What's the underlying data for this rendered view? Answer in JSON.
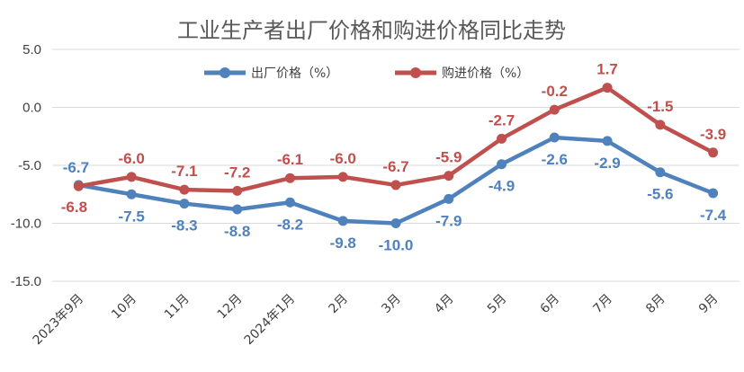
{
  "chart_data": {
    "type": "line",
    "title": "工业生产者出厂价格和购进价格同比走势",
    "categories": [
      "2023年9月",
      "10月",
      "11月",
      "12月",
      "2024年1月",
      "2月",
      "3月",
      "4月",
      "5月",
      "6月",
      "7月",
      "8月",
      "9月"
    ],
    "series": [
      {
        "name": "出厂价格（%）",
        "color": "#4f81bd",
        "values": [
          -6.7,
          -7.5,
          -8.3,
          -8.8,
          -8.2,
          -9.8,
          -10.0,
          -7.9,
          -4.9,
          -2.6,
          -2.9,
          -5.6,
          -7.4
        ],
        "labels": [
          "-6.7",
          "-7.5",
          "-8.3",
          "-8.8",
          "-8.2",
          "-9.8",
          "-10.0",
          "-7.9",
          "-4.9",
          "-2.6",
          "-2.9",
          "-5.6",
          "-7.4"
        ]
      },
      {
        "name": "购进价格（%）",
        "color": "#c0504d",
        "values": [
          -6.8,
          -6.0,
          -7.1,
          -7.2,
          -6.1,
          -6.0,
          -6.7,
          -5.9,
          -2.7,
          -0.2,
          1.7,
          -1.5,
          -3.9
        ],
        "labels": [
          "-6.8",
          "-6.0",
          "-7.1",
          "-7.2",
          "-6.1",
          "-6.0",
          "-6.7",
          "-5.9",
          "-2.7",
          "-0.2",
          "1.7",
          "-1.5",
          "-3.9"
        ]
      }
    ],
    "yticks": [
      "5.0",
      "0.0",
      "-5.0",
      "-10.0",
      "-15.0"
    ],
    "ylim": [
      -15,
      5
    ],
    "grid": true,
    "legend": "top-center"
  }
}
